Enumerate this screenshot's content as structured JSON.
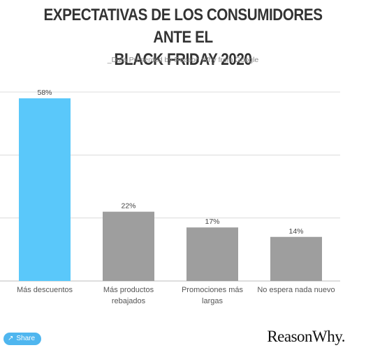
{
  "header": {
    "title_line1": "EXPECTATIVAS DE LOS CONSUMIDORES ANTE EL",
    "title_line2": "BLACK FRIDAY 2020",
    "subtitle": "_Data Presented by Reason Why from Google"
  },
  "footer": {
    "share_label": "Share",
    "logo_text": "ReasonWhy."
  },
  "colors": {
    "highlight": "#5ac8fa",
    "bar": "#9e9e9e",
    "grid": "#dcdcdc"
  },
  "chart_data": {
    "type": "bar",
    "categories": [
      [
        "Más descuentos"
      ],
      [
        "Más productos",
        "rebajados"
      ],
      [
        "Promociones más",
        "largas"
      ],
      [
        "No espera nada nuevo"
      ]
    ],
    "values": [
      58,
      22,
      17,
      14
    ],
    "value_labels": [
      "58%",
      "22%",
      "17%",
      "14%"
    ],
    "bar_colors": [
      "#5ac8fa",
      "#9e9e9e",
      "#9e9e9e",
      "#9e9e9e"
    ],
    "title": "EXPECTATIVAS DE LOS CONSUMIDORES ANTE EL BLACK FRIDAY 2020",
    "xlabel": "",
    "ylabel": "",
    "ylim": [
      0,
      60
    ],
    "grid": true
  }
}
